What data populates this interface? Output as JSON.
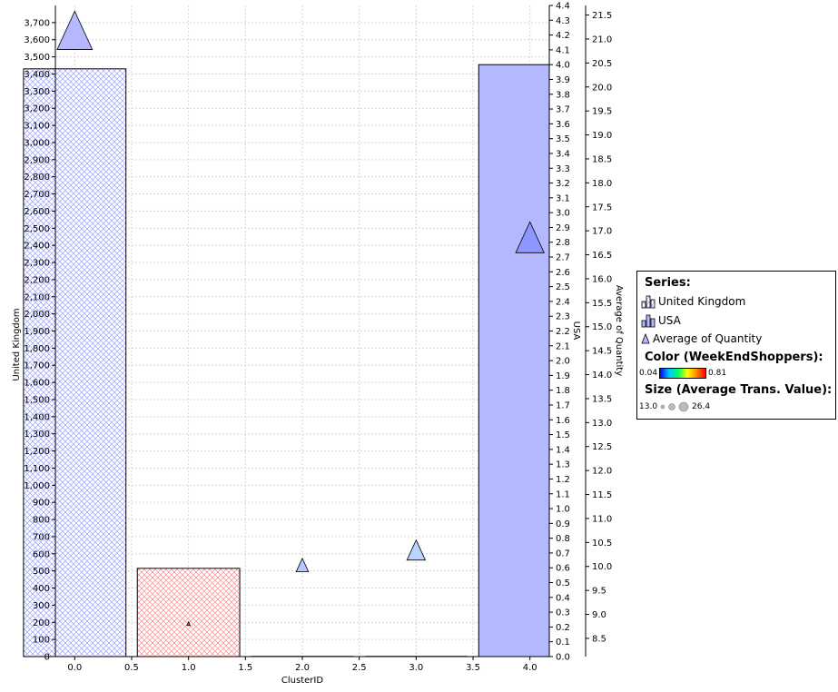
{
  "chart_data": {
    "type": "bar",
    "xlabel": "ClusterID",
    "x_ticks": [
      "0.0",
      "0.5",
      "1.0",
      "1.5",
      "2.0",
      "2.5",
      "3.0",
      "3.5",
      "4.0"
    ],
    "xlim": [
      -0.17,
      4.17
    ],
    "y_axes": [
      {
        "label": "United Kingdom",
        "position": "left",
        "range": [
          0,
          3800
        ],
        "step": 100
      },
      {
        "label": "USA",
        "position": "right",
        "range": [
          0,
          4.4
        ],
        "step": 0.1
      },
      {
        "label": "Average of Quantity",
        "position": "right-outer",
        "range": [
          8.12,
          21.7
        ],
        "ticks": [
          8.5,
          9.0,
          9.5,
          10.0,
          10.5,
          11.0,
          11.5,
          12.0,
          12.5,
          13.0,
          13.5,
          14.0,
          14.5,
          15.0,
          15.5,
          16.0,
          16.5,
          17.0,
          17.5,
          18.0,
          18.5,
          19.0,
          19.5,
          20.0,
          20.5,
          21.0,
          21.5
        ]
      }
    ],
    "series": [
      {
        "name": "United Kingdom",
        "axis": "United Kingdom",
        "style": "crosshatch",
        "bars": [
          {
            "x_from": -0.45,
            "x_to": 0.45,
            "value": 3430,
            "color": "#b3b8ff"
          },
          {
            "x_from": 0.55,
            "x_to": 1.45,
            "value": 515,
            "color": "#ff9f9f"
          }
        ]
      },
      {
        "name": "USA",
        "axis": "USA",
        "style": "solid",
        "bars": [
          {
            "x_from": 3.55,
            "x_to": 4.45,
            "value": 4.0,
            "color": "#b3b8ff"
          }
        ]
      },
      {
        "name": "Average of Quantity",
        "axis": "Average of Quantity",
        "style": "triangle",
        "points": [
          {
            "x": 0.0,
            "y": 21.1,
            "size": 26.4,
            "color": "#b3b8ff"
          },
          {
            "x": 1.0,
            "y": 8.8,
            "size": 13.0,
            "color": "#8c8c8c"
          },
          {
            "x": 2.0,
            "y": 10.0,
            "size": 15.0,
            "color": "#b8c8ff"
          },
          {
            "x": 3.0,
            "y": 10.3,
            "size": 18.0,
            "color": "#b8d4ff"
          },
          {
            "x": 4.0,
            "y": 16.8,
            "size": 23.0,
            "color": "#8c98ff"
          }
        ]
      }
    ],
    "grid": true,
    "legend": {
      "position": "right",
      "series_title": "Series:",
      "entries": [
        "United Kingdom",
        "USA",
        "Average of Quantity"
      ],
      "color_title": "Color (WeekEndShoppers):",
      "color_min": "0.04",
      "color_max": "0.81",
      "size_title": "Size (Average Trans. Value):",
      "size_min": "13.0",
      "size_max": "26.4"
    }
  }
}
